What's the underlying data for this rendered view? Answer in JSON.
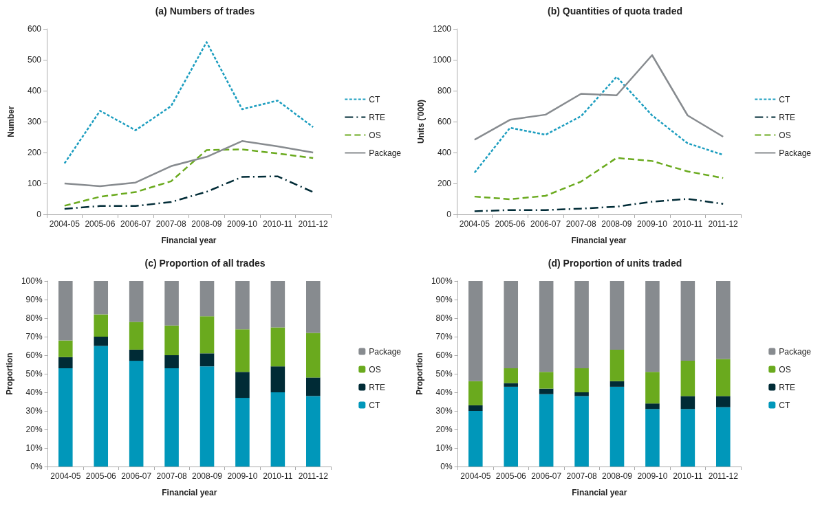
{
  "chart_data": [
    {
      "type": "line",
      "title": "(a) Numbers of trades",
      "xlabel": "Financial year",
      "ylabel": "Number",
      "categories": [
        "2004-05",
        "2005-06",
        "2006-07",
        "2007-08",
        "2008-09",
        "2009-10",
        "2010-11",
        "2011-12"
      ],
      "series": [
        {
          "name": "CT",
          "color": "#1b9dbf",
          "line_style": "dashed",
          "values": [
            165,
            335,
            272,
            350,
            557,
            340,
            368,
            282
          ]
        },
        {
          "name": "RTE",
          "color": "#002b36",
          "line_style": "dashdot",
          "values": [
            18,
            27,
            27,
            40,
            73,
            121,
            123,
            72
          ]
        },
        {
          "name": "OS",
          "color": "#6aaa1e",
          "line_style": "longdash",
          "values": [
            28,
            57,
            72,
            107,
            208,
            210,
            197,
            182
          ]
        },
        {
          "name": "Package",
          "color": "#878b8f",
          "line_style": "solid",
          "values": [
            100,
            91,
            103,
            156,
            186,
            237,
            220,
            200
          ]
        }
      ],
      "ylim": [
        0,
        600
      ],
      "yticks": [
        0,
        100,
        200,
        300,
        400,
        500,
        600
      ],
      "grid": false,
      "legend": "right",
      "marker": "none"
    },
    {
      "type": "line",
      "title": "(b) Quantities of quota traded",
      "xlabel": "Financial year",
      "ylabel": "Units ('000)",
      "categories": [
        "2004-05",
        "2005-06",
        "2006-07",
        "2007-08",
        "2008-09",
        "2009-10",
        "2010-11",
        "2011-12"
      ],
      "series": [
        {
          "name": "CT",
          "color": "#1b9dbf",
          "line_style": "dashed",
          "values": [
            270,
            560,
            515,
            635,
            890,
            640,
            460,
            385
          ]
        },
        {
          "name": "RTE",
          "color": "#002b36",
          "line_style": "dashdot",
          "values": [
            20,
            28,
            28,
            37,
            50,
            82,
            100,
            68
          ]
        },
        {
          "name": "OS",
          "color": "#6aaa1e",
          "line_style": "longdash",
          "values": [
            115,
            98,
            120,
            212,
            365,
            345,
            278,
            235
          ]
        },
        {
          "name": "Package",
          "color": "#878b8f",
          "line_style": "solid",
          "values": [
            483,
            612,
            645,
            780,
            770,
            1030,
            640,
            502
          ]
        }
      ],
      "ylim": [
        0,
        1200
      ],
      "yticks": [
        0,
        200,
        400,
        600,
        800,
        1000,
        1200
      ],
      "grid": false,
      "legend": "right",
      "marker": "none"
    },
    {
      "type": "bar",
      "stacked": true,
      "title": "(c) Proportion of all trades",
      "xlabel": "Financial year",
      "ylabel": "Proportion",
      "categories": [
        "2004-05",
        "2005-06",
        "2006-07",
        "2007-08",
        "2008-09",
        "2009-10",
        "2010-11",
        "2011-12"
      ],
      "series": [
        {
          "name": "CT",
          "color": "#0097ba",
          "values": [
            53,
            65,
            57,
            53,
            54,
            37,
            40,
            38
          ]
        },
        {
          "name": "RTE",
          "color": "#002b36",
          "values": [
            6,
            5,
            6,
            7,
            7,
            14,
            14,
            10
          ]
        },
        {
          "name": "OS",
          "color": "#6aaa1e",
          "values": [
            9,
            12,
            15,
            16,
            20,
            23,
            21,
            24
          ]
        },
        {
          "name": "Package",
          "color": "#878b8f",
          "values": [
            32,
            18,
            22,
            24,
            19,
            26,
            25,
            28
          ]
        }
      ],
      "ylim": [
        0,
        100
      ],
      "yticks": [
        {
          "value": 0,
          "label": "0%"
        },
        {
          "value": 10,
          "label": "10%"
        },
        {
          "value": 20,
          "label": "20%"
        },
        {
          "value": 30,
          "label": "30%"
        },
        {
          "value": 40,
          "label": "40%"
        },
        {
          "value": 50,
          "label": "50%"
        },
        {
          "value": 60,
          "label": "60%"
        },
        {
          "value": 70,
          "label": "70%"
        },
        {
          "value": 80,
          "label": "80%"
        },
        {
          "value": 90,
          "label": "90%"
        },
        {
          "value": 100,
          "label": "100%"
        }
      ],
      "grid": false,
      "legend": "right"
    },
    {
      "type": "bar",
      "stacked": true,
      "title": "(d) Proportion of units traded",
      "xlabel": "Financial year",
      "ylabel": "Proportion",
      "categories": [
        "2004-05",
        "2005-06",
        "2006-07",
        "2007-08",
        "2008-09",
        "2009-10",
        "2010-11",
        "2011-12"
      ],
      "series": [
        {
          "name": "CT",
          "color": "#0097ba",
          "values": [
            30,
            43,
            39,
            38,
            43,
            31,
            31,
            32
          ]
        },
        {
          "name": "RTE",
          "color": "#002b36",
          "values": [
            3,
            2,
            3,
            2,
            3,
            3,
            7,
            6
          ]
        },
        {
          "name": "OS",
          "color": "#6aaa1e",
          "values": [
            13,
            8,
            9,
            13,
            17,
            17,
            19,
            20
          ]
        },
        {
          "name": "Package",
          "color": "#878b8f",
          "values": [
            54,
            47,
            49,
            47,
            37,
            49,
            43,
            42
          ]
        }
      ],
      "ylim": [
        0,
        100
      ],
      "yticks": [
        {
          "value": 0,
          "label": "0%"
        },
        {
          "value": 10,
          "label": "10%"
        },
        {
          "value": 20,
          "label": "20%"
        },
        {
          "value": 30,
          "label": "30%"
        },
        {
          "value": 40,
          "label": "40%"
        },
        {
          "value": 50,
          "label": "50%"
        },
        {
          "value": 60,
          "label": "60%"
        },
        {
          "value": 70,
          "label": "70%"
        },
        {
          "value": 80,
          "label": "80%"
        },
        {
          "value": 90,
          "label": "90%"
        },
        {
          "value": 100,
          "label": "100%"
        }
      ],
      "grid": false,
      "legend": "right"
    }
  ]
}
